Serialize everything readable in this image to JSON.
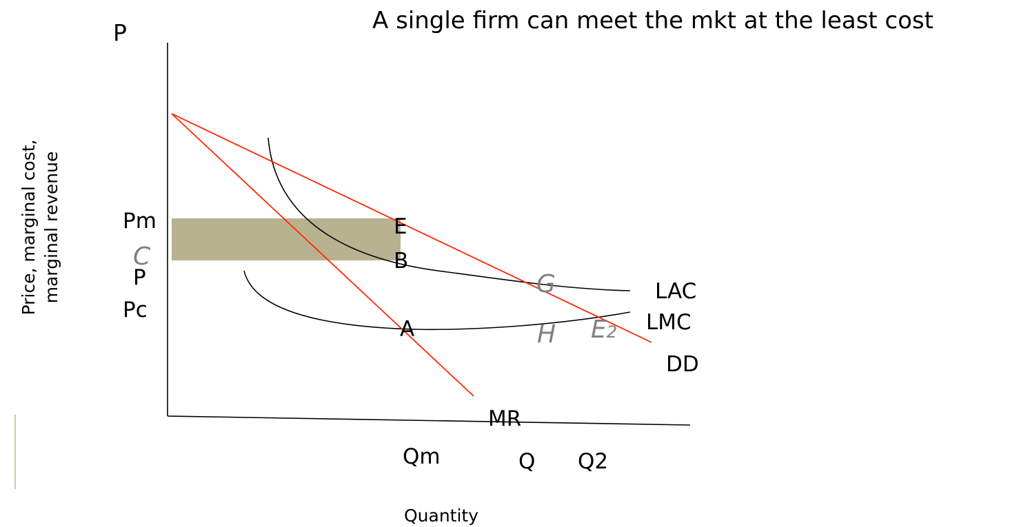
{
  "slide": {
    "title": "A single firm can meet the mkt at the least  cost",
    "y_axis_title_line1": "Price, marginal cost,",
    "y_axis_title_line2": "marginal revenue",
    "x_axis_title": "Quantity",
    "y_axis_top_label": "P"
  },
  "y_labels": {
    "pm": "Pm",
    "c": "C",
    "p": "P",
    "pc": "Pc"
  },
  "x_labels": {
    "qm": "Qm",
    "q": "Q",
    "q2": "Q2"
  },
  "points": {
    "e": "E",
    "b": "B",
    "a": "A",
    "g": "G",
    "h": "H",
    "e2_base": "E",
    "e2_sub": "2"
  },
  "curves": {
    "lac": "LAC",
    "lmc": "LMC",
    "dd": "DD",
    "mr": "MR"
  },
  "colors": {
    "profit_area": "#b8b291",
    "demand_lines": "#ff2400",
    "accent_bar": "#c9cf9e",
    "gray_labels": "#808080"
  }
}
